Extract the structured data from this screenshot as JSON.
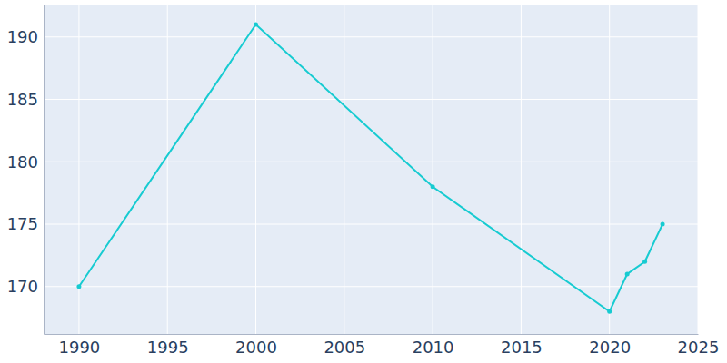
{
  "chart_data": {
    "type": "line",
    "x": [
      1990,
      2000,
      2010,
      2020,
      2021,
      2022,
      2023
    ],
    "values": [
      170,
      191,
      178,
      168,
      171,
      172,
      175
    ],
    "color": "#17cbd1",
    "marker": "circle",
    "xlim": [
      1988,
      2025
    ],
    "xticks": [
      1990,
      1995,
      2000,
      2005,
      2010,
      2015,
      2020,
      2025
    ],
    "ylim": [
      166.2,
      192.6
    ],
    "yticks": [
      170,
      175,
      180,
      185,
      190
    ],
    "grid": true
  }
}
